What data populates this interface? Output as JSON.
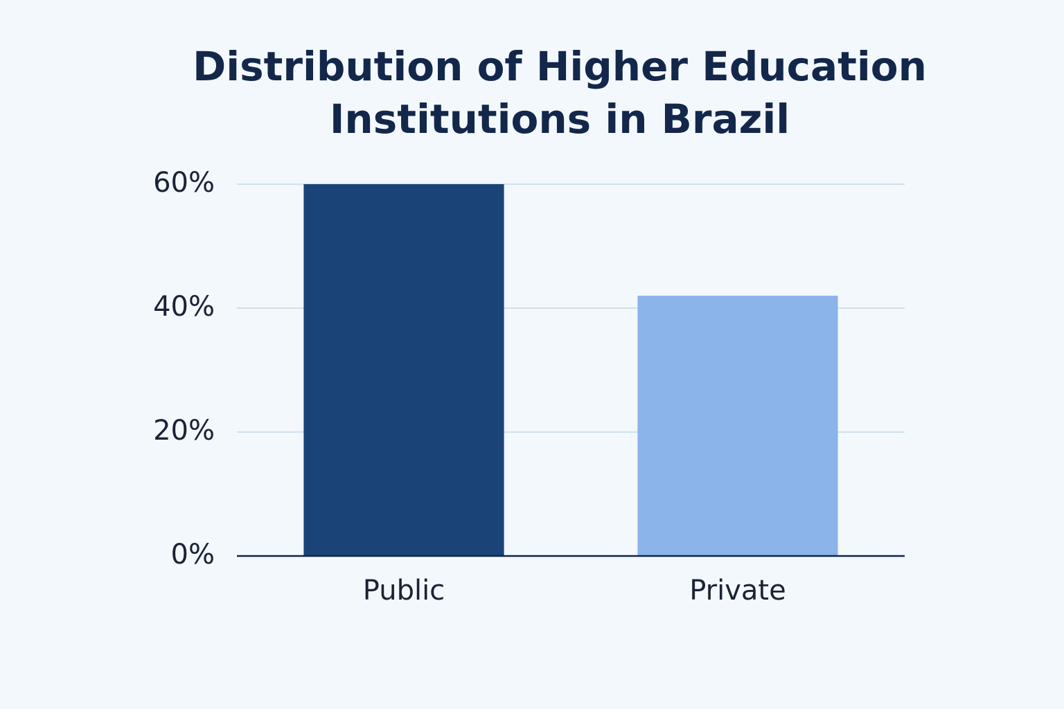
{
  "chart_data": {
    "type": "bar",
    "title": "Distribution of Higher Education Institutions in Brazil",
    "categories": [
      "Public",
      "Private"
    ],
    "values": [
      60,
      42
    ],
    "colors": [
      "#1a4478",
      "#8ab4ea"
    ],
    "ylim": [
      0,
      60
    ],
    "yticks": [
      {
        "value": 0,
        "label": "0%"
      },
      {
        "value": 20,
        "label": "20%"
      },
      {
        "value": 40,
        "label": "40%"
      },
      {
        "value": 60,
        "label": "60%"
      }
    ],
    "grid": true
  }
}
